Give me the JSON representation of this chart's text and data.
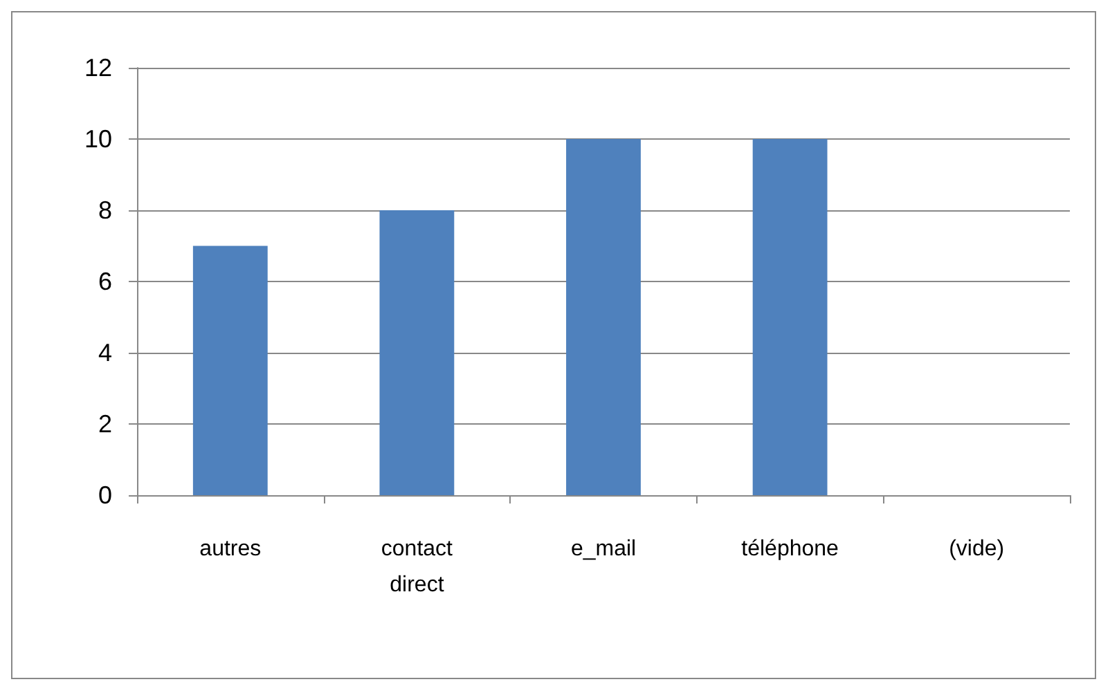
{
  "chart_data": {
    "type": "bar",
    "categories": [
      "autres",
      "contact direct",
      "e_mail",
      "téléphone",
      "(vide)"
    ],
    "values": [
      7,
      8,
      10,
      10,
      null
    ],
    "color": "#4f81bd",
    "ylim": [
      0,
      12
    ],
    "yticks": [
      0,
      2,
      4,
      6,
      8,
      10,
      12
    ],
    "grid": "y"
  }
}
